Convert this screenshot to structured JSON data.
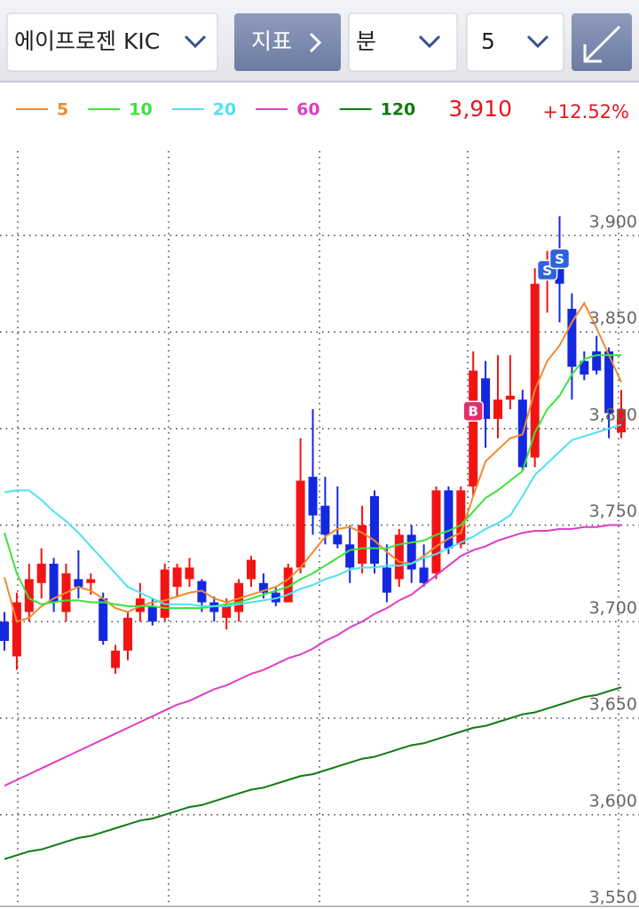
{
  "toolbar": {
    "stock": "에이프로젠 KIC",
    "indicator": "지표",
    "period": "분",
    "interval": "5"
  },
  "chart_data": {
    "type": "candlestick",
    "price": "3,910",
    "change": "+12.52%",
    "up_color": "#f21414",
    "down_color": "#1428e0",
    "ylim": [
      3553,
      3953
    ],
    "yticks": [
      {
        "value": 3550,
        "label": "3,550"
      },
      {
        "value": 3600,
        "label": "3,600"
      },
      {
        "value": 3650,
        "label": "3,650"
      },
      {
        "value": 3700,
        "label": "3,700"
      },
      {
        "value": 3750,
        "label": "3,750"
      },
      {
        "value": 3800,
        "label": "3,800"
      },
      {
        "value": 3850,
        "label": "3,850"
      },
      {
        "value": 3900,
        "label": "3,900"
      }
    ],
    "grid": true,
    "open": [
      3700,
      3682,
      3705,
      3720,
      3730,
      3705,
      3722,
      3720,
      3712,
      3676,
      3685,
      3705,
      3708,
      3702,
      3718,
      3722,
      3721,
      3710,
      3702,
      3705,
      3722,
      3720,
      3715,
      3710,
      3728,
      3775,
      3760,
      3745,
      3740,
      3730,
      3765,
      3728,
      3722,
      3745,
      3728,
      3725,
      3768,
      3740,
      3770,
      3826,
      3805,
      3815,
      3815,
      3785,
      3878,
      3885,
      3862,
      3835,
      3840,
      3840,
      3798
    ],
    "high": [
      3705,
      3715,
      3730,
      3738,
      3733,
      3730,
      3737,
      3725,
      3715,
      3688,
      3705,
      3720,
      3712,
      3730,
      3730,
      3733,
      3722,
      3713,
      3712,
      3722,
      3734,
      3725,
      3718,
      3730,
      3795,
      3810,
      3775,
      3770,
      3750,
      3760,
      3768,
      3740,
      3748,
      3750,
      3740,
      3770,
      3770,
      3770,
      3840,
      3835,
      3838,
      3838,
      3820,
      3883,
      3892,
      3910,
      3870,
      3840,
      3848,
      3842,
      3820
    ],
    "low": [
      3685,
      3675,
      3700,
      3712,
      3705,
      3700,
      3712,
      3714,
      3688,
      3673,
      3680,
      3700,
      3698,
      3700,
      3713,
      3718,
      3705,
      3700,
      3696,
      3700,
      3718,
      3712,
      3708,
      3710,
      3725,
      3745,
      3740,
      3738,
      3720,
      3725,
      3725,
      3710,
      3718,
      3720,
      3718,
      3722,
      3735,
      3738,
      3765,
      3790,
      3795,
      3810,
      3778,
      3780,
      3860,
      3855,
      3815,
      3825,
      3828,
      3795,
      3795
    ],
    "close": [
      3690,
      3710,
      3722,
      3730,
      3710,
      3725,
      3718,
      3722,
      3690,
      3685,
      3702,
      3712,
      3700,
      3727,
      3728,
      3728,
      3710,
      3705,
      3708,
      3720,
      3732,
      3715,
      3710,
      3728,
      3773,
      3755,
      3745,
      3740,
      3728,
      3750,
      3730,
      3715,
      3745,
      3727,
      3720,
      3768,
      3738,
      3768,
      3830,
      3805,
      3815,
      3817,
      3780,
      3875,
      3880,
      3875,
      3832,
      3828,
      3830,
      3808,
      3810
    ],
    "series": [
      {
        "name": "5",
        "color": "#f08a30",
        "values": [
          3723,
          3700,
          3702,
          3708,
          3712,
          3715,
          3718,
          3716,
          3712,
          3707,
          3705,
          3708,
          3710,
          3711,
          3713,
          3715,
          3716,
          3712,
          3710,
          3712,
          3714,
          3716,
          3718,
          3722,
          3728,
          3736,
          3744,
          3748,
          3749,
          3746,
          3742,
          3736,
          3731,
          3730,
          3734,
          3739,
          3743,
          3746,
          3765,
          3783,
          3789,
          3795,
          3797,
          3820,
          3835,
          3843,
          3855,
          3865,
          3852,
          3838,
          3824
        ]
      },
      {
        "name": "10",
        "color": "#3ee23e",
        "values": [
          3746,
          3725,
          3712,
          3709,
          3710,
          3711,
          3711,
          3710,
          3710,
          3709,
          3708,
          3708,
          3708,
          3707,
          3707,
          3707,
          3707,
          3708,
          3709,
          3710,
          3712,
          3714,
          3716,
          3718,
          3722,
          3725,
          3729,
          3733,
          3737,
          3738,
          3738,
          3738,
          3740,
          3741,
          3742,
          3745,
          3747,
          3750,
          3757,
          3764,
          3768,
          3773,
          3778,
          3798,
          3810,
          3817,
          3828,
          3836,
          3838,
          3838,
          3838
        ]
      },
      {
        "name": "20",
        "color": "#4fe0f2",
        "values": [
          3767,
          3768,
          3768,
          3763,
          3757,
          3752,
          3746,
          3739,
          3732,
          3725,
          3718,
          3715,
          3712,
          3709,
          3709,
          3709,
          3708,
          3708,
          3708,
          3709,
          3710,
          3711,
          3712,
          3714,
          3717,
          3719,
          3722,
          3724,
          3727,
          3728,
          3728,
          3729,
          3729,
          3730,
          3733,
          3735,
          3738,
          3741,
          3744,
          3748,
          3751,
          3755,
          3765,
          3776,
          3782,
          3788,
          3794,
          3796,
          3798,
          3800,
          3802
        ]
      },
      {
        "name": "60",
        "color": "#e03cc4",
        "values": [
          3615,
          3618,
          3621,
          3624,
          3627,
          3630,
          3633,
          3636,
          3639,
          3642,
          3645,
          3648,
          3651,
          3654,
          3657,
          3659,
          3662,
          3665,
          3667,
          3670,
          3673,
          3675,
          3678,
          3681,
          3683,
          3686,
          3690,
          3693,
          3697,
          3700,
          3704,
          3707,
          3711,
          3714,
          3719,
          3724,
          3729,
          3734,
          3737,
          3739,
          3742,
          3744,
          3746,
          3747,
          3747,
          3748,
          3748,
          3749,
          3749,
          3750,
          3750
        ]
      },
      {
        "name": "120",
        "color": "#0f7a14",
        "values": [
          3577,
          3579,
          3581,
          3582,
          3584,
          3586,
          3588,
          3589,
          3591,
          3593,
          3595,
          3597,
          3598,
          3600,
          3602,
          3604,
          3605,
          3607,
          3609,
          3611,
          3613,
          3614,
          3616,
          3618,
          3620,
          3621,
          3623,
          3625,
          3627,
          3629,
          3630,
          3632,
          3634,
          3636,
          3637,
          3639,
          3641,
          3643,
          3645,
          3646,
          3648,
          3650,
          3652,
          3653,
          3655,
          3657,
          3659,
          3661,
          3662,
          3664,
          3666
        ]
      }
    ],
    "signals": [
      {
        "label": "B",
        "index": 38,
        "price": 3809,
        "color": "#e0306a"
      },
      {
        "label": "S",
        "index": 44,
        "price": 3882,
        "color": "#2f62dc"
      },
      {
        "label": "S",
        "index": 45,
        "price": 3888,
        "color": "#2f62dc"
      }
    ]
  }
}
